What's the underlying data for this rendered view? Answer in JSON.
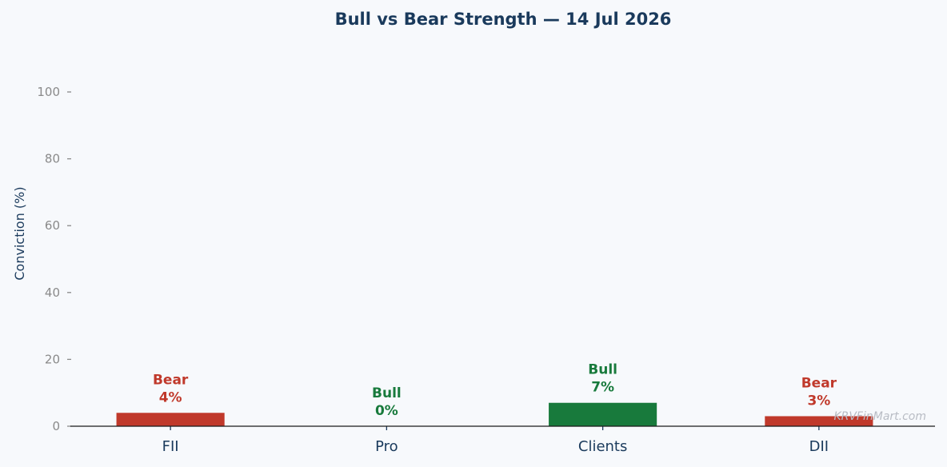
{
  "chart_data": {
    "type": "bar",
    "title": "Bull vs Bear Strength — 14 Jul 2026",
    "xlabel": "",
    "ylabel": "Conviction (%)",
    "ylim": [
      0,
      110
    ],
    "yticks": [
      0,
      20,
      40,
      60,
      80,
      100
    ],
    "grid": false,
    "categories": [
      "FII",
      "Pro",
      "Clients",
      "DII"
    ],
    "values": [
      4,
      0,
      7,
      3
    ],
    "sentiment": [
      "Bear",
      "Bull",
      "Bull",
      "Bear"
    ],
    "value_labels": [
      "4%",
      "0%",
      "7%",
      "3%"
    ],
    "colors": {
      "Bull": "#187a3c",
      "Bear": "#c0392b"
    }
  },
  "watermark": "KRVFinMart.com"
}
